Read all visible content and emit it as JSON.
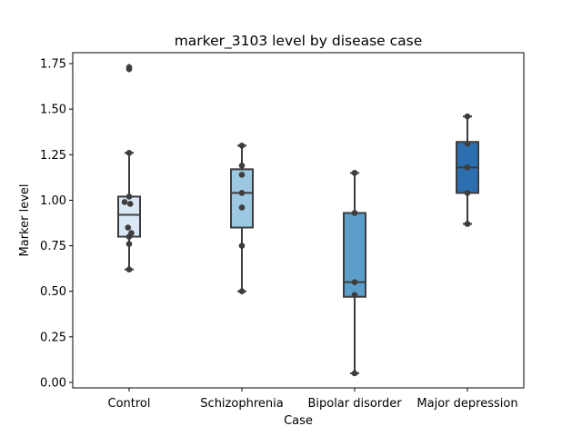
{
  "chart_data": {
    "type": "box",
    "title": "marker_3103 level by disease case",
    "xlabel": "Case",
    "ylabel": "Marker level",
    "ylim": [
      -0.03,
      1.81
    ],
    "yticks": [
      "0.00",
      "0.25",
      "0.50",
      "0.75",
      "1.00",
      "1.25",
      "1.50",
      "1.75"
    ],
    "categories": [
      "Control",
      "Schizophrenia",
      "Bipolar disorder",
      "Major depression"
    ],
    "box_colors": [
      "#dae8f5",
      "#9cc9e1",
      "#5a9ec9",
      "#2c6fb0"
    ],
    "edge_color": "#3d3d3d",
    "point_color": "#3d3d3d",
    "boxes": [
      {
        "whisker_low": 0.62,
        "q1": 0.8,
        "median": 0.92,
        "q3": 1.02,
        "whisker_high": 1.26,
        "outliers": [
          1.72,
          1.73
        ]
      },
      {
        "whisker_low": 0.5,
        "q1": 0.85,
        "median": 1.04,
        "q3": 1.17,
        "whisker_high": 1.3,
        "outliers": []
      },
      {
        "whisker_low": 0.05,
        "q1": 0.47,
        "median": 0.55,
        "q3": 0.93,
        "whisker_high": 1.15,
        "outliers": []
      },
      {
        "whisker_low": 0.87,
        "q1": 1.04,
        "median": 1.18,
        "q3": 1.32,
        "whisker_high": 1.46,
        "outliers": []
      }
    ],
    "points": [
      [
        0.62,
        0.76,
        0.8,
        0.82,
        0.85,
        0.98,
        0.99,
        1.02,
        1.26,
        1.72,
        1.73
      ],
      [
        0.5,
        0.75,
        0.96,
        1.04,
        1.14,
        1.19,
        1.3
      ],
      [
        0.05,
        0.48,
        0.55,
        0.93,
        1.15
      ],
      [
        0.87,
        1.04,
        1.18,
        1.31,
        1.46
      ]
    ],
    "point_offsets": [
      [
        0,
        0,
        0,
        0.02,
        -0.01,
        0.01,
        -0.04,
        0,
        0,
        0,
        0
      ],
      [
        0,
        0,
        0,
        0,
        0,
        0,
        0
      ],
      [
        0,
        0,
        0,
        0,
        0
      ],
      [
        0,
        0,
        0,
        0,
        0
      ]
    ]
  }
}
